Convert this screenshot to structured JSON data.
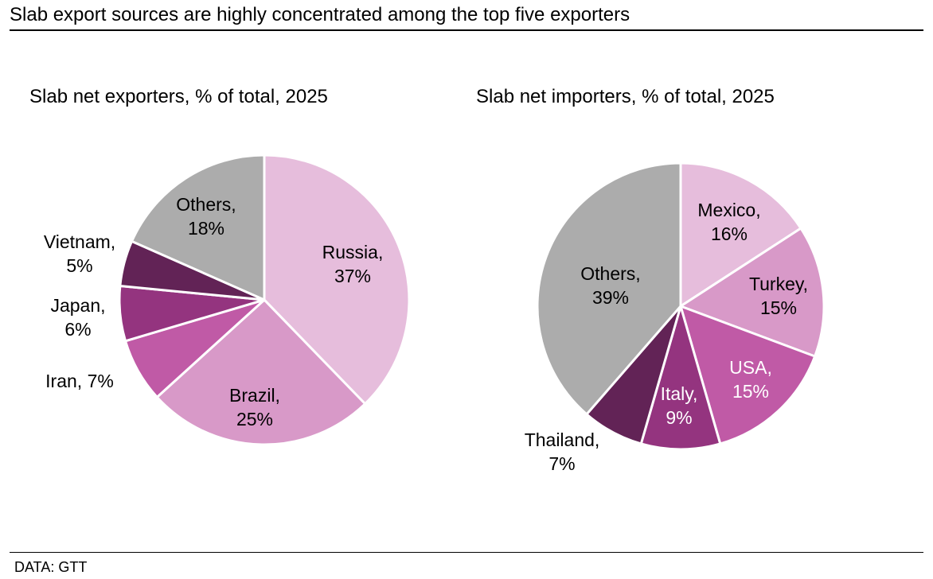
{
  "title": "Slab export sources are highly concentrated among the top five exporters",
  "source": "DATA: GTT",
  "chart_data": [
    {
      "type": "pie",
      "title": "Slab net exporters, % of total, 2025",
      "slices": [
        {
          "label": "Russia",
          "value": 37,
          "display": [
            "Russia,",
            "37%"
          ],
          "color": "#e6bddc"
        },
        {
          "label": "Brazil",
          "value": 25,
          "display": [
            "Brazil,",
            "25%"
          ],
          "color": "#d899c8"
        },
        {
          "label": "Iran",
          "value": 7,
          "display": [
            "Iran, 7%"
          ],
          "color": "#c05aa6"
        },
        {
          "label": "Japan",
          "value": 6,
          "display": [
            "Japan,",
            "6%"
          ],
          "color": "#94347f"
        },
        {
          "label": "Vietnam",
          "value": 5,
          "display": [
            "Vietnam,",
            "5%"
          ],
          "color": "#622356"
        },
        {
          "label": "Others",
          "value": 18,
          "display": [
            "Others,",
            "18%"
          ],
          "color": "#acacac"
        }
      ]
    },
    {
      "type": "pie",
      "title": "Slab net importers, % of total, 2025",
      "slices": [
        {
          "label": "Mexico",
          "value": 16,
          "display": [
            "Mexico,",
            "16%"
          ],
          "color": "#e6bddc"
        },
        {
          "label": "Turkey",
          "value": 15,
          "display": [
            "Turkey,",
            "15%"
          ],
          "color": "#d899c8"
        },
        {
          "label": "USA",
          "value": 15,
          "display": [
            "USA,",
            "15%"
          ],
          "color": "#c05aa6",
          "text_color": "#ffffff"
        },
        {
          "label": "Italy",
          "value": 9,
          "display": [
            "Italy,",
            "9%"
          ],
          "color": "#94347f",
          "text_color": "#ffffff"
        },
        {
          "label": "Thailand",
          "value": 7,
          "display": [
            "Thailand,",
            "7%"
          ],
          "color": "#622356"
        },
        {
          "label": "Others",
          "value": 39,
          "display": [
            "Others,",
            "39%"
          ],
          "color": "#acacac"
        }
      ]
    }
  ]
}
